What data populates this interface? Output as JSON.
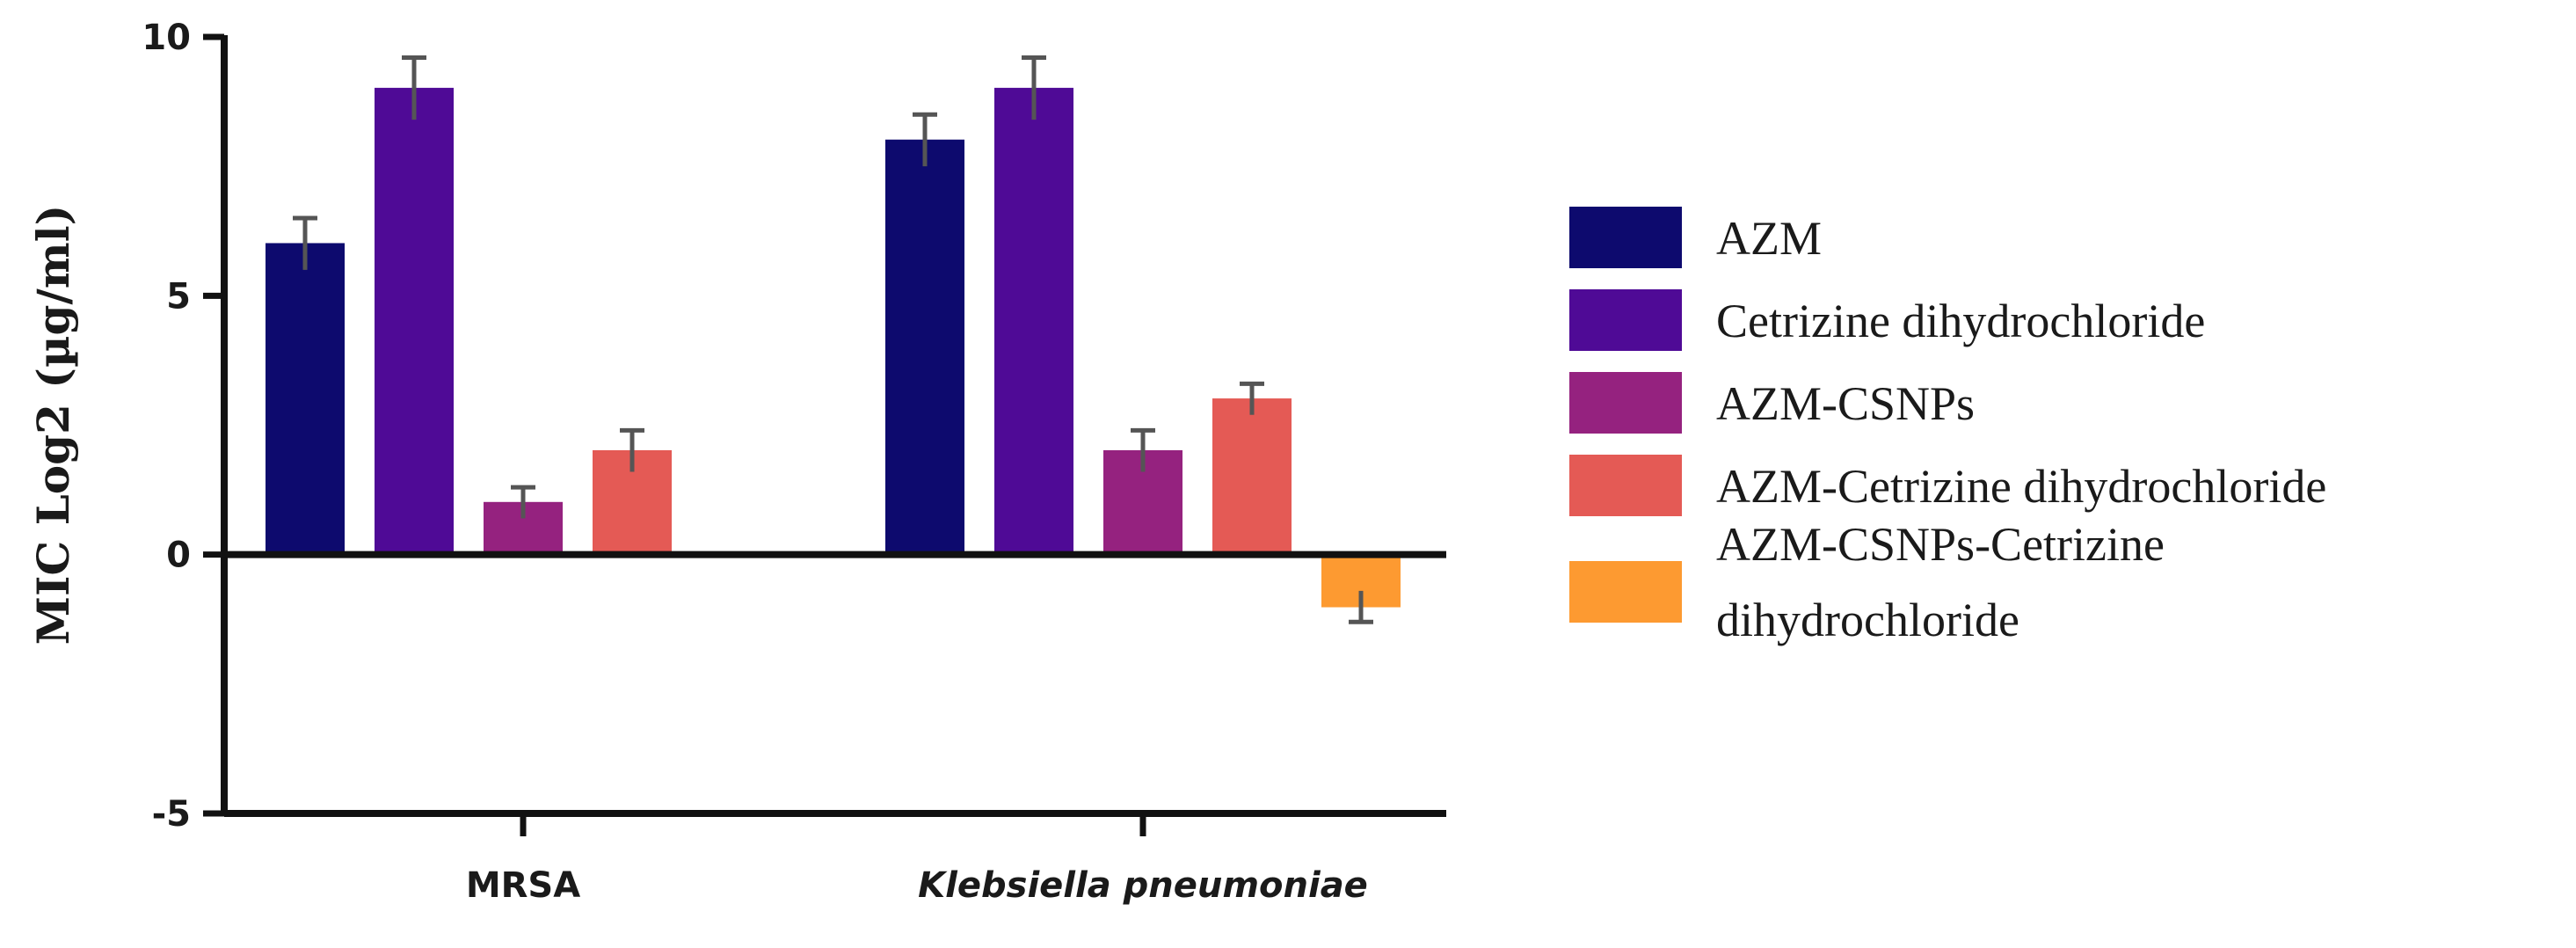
{
  "chart_data": {
    "type": "bar",
    "title": "",
    "xlabel": "",
    "ylabel": "MIC Log2 (µg/ml)",
    "ylim": [
      -5,
      10
    ],
    "yticks": [
      "10",
      "5",
      "0",
      "-5"
    ],
    "categories": [
      "MRSA",
      "Klebsiella pneumoniae"
    ],
    "category_italic": [
      false,
      true
    ],
    "legend_position": "right",
    "series": [
      {
        "name": "AZM",
        "color": "#0d0a6e",
        "values": [
          6,
          8
        ],
        "errors": [
          0.5,
          0.5
        ]
      },
      {
        "name": "Cetrizine dihydrochloride",
        "color": "#4f0a96",
        "values": [
          9,
          9
        ],
        "errors": [
          0.6,
          0.6
        ]
      },
      {
        "name": "AZM-CSNPs",
        "color": "#95227f",
        "values": [
          1,
          2
        ],
        "errors": [
          0.3,
          0.4
        ]
      },
      {
        "name": "AZM-Cetrizine dihydrochloride",
        "color": "#e45a55",
        "values": [
          2,
          3
        ],
        "errors": [
          0.4,
          0.3
        ]
      },
      {
        "name": "AZM-CSNPs-Cetrizine dihydrochloride",
        "legend_lines": [
          "AZM-CSNPs-Cetrizine",
          "dihydrochloride"
        ],
        "color": "#fd9a31",
        "values": [
          null,
          -1
        ],
        "errors": [
          null,
          0.3
        ]
      }
    ]
  }
}
